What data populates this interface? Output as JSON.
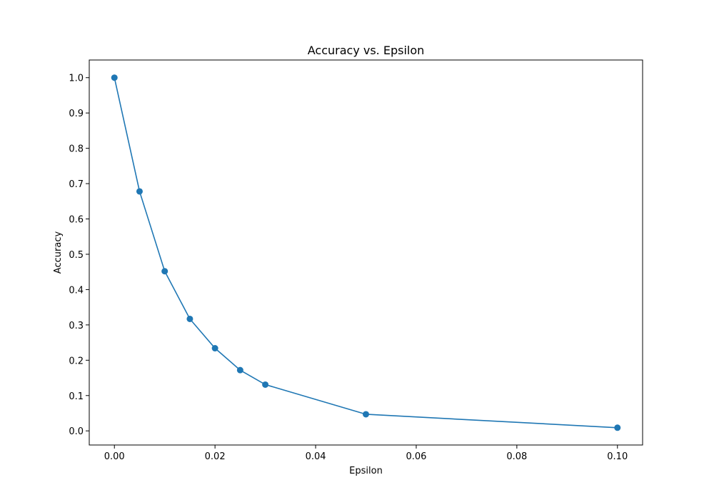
{
  "chart_data": {
    "type": "line",
    "title": "Accuracy vs. Epsilon",
    "xlabel": "Epsilon",
    "ylabel": "Accuracy",
    "x": [
      0.0,
      0.005,
      0.01,
      0.015,
      0.02,
      0.025,
      0.03,
      0.05,
      0.1
    ],
    "series": [
      {
        "values": [
          1.0,
          0.678,
          0.452,
          0.317,
          0.234,
          0.172,
          0.131,
          0.047,
          0.009
        ],
        "color": "#1f77b4",
        "marker": "circle"
      }
    ],
    "xlim": [
      -0.005,
      0.105
    ],
    "ylim": [
      -0.04,
      1.05
    ],
    "xticks": [
      0.0,
      0.02,
      0.04,
      0.06,
      0.08,
      0.1
    ],
    "xtick_labels": [
      "0.00",
      "0.02",
      "0.04",
      "0.06",
      "0.08",
      "0.10"
    ],
    "yticks": [
      0.0,
      0.1,
      0.2,
      0.3,
      0.4,
      0.5,
      0.6,
      0.7,
      0.8,
      0.9,
      1.0
    ],
    "ytick_labels": [
      "0.0",
      "0.1",
      "0.2",
      "0.3",
      "0.4",
      "0.5",
      "0.6",
      "0.7",
      "0.8",
      "0.9",
      "1.0"
    ],
    "grid": false,
    "legend": false
  }
}
